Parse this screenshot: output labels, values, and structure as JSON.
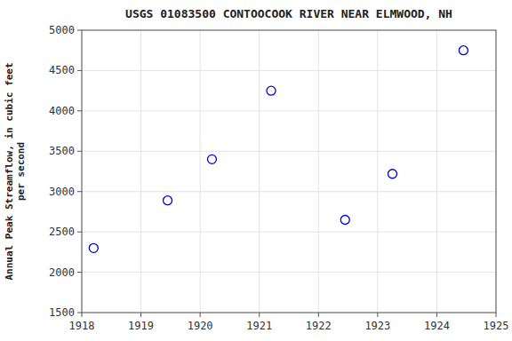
{
  "chart_data": {
    "type": "scatter",
    "title": "USGS 01083500 CONTOOCOOK RIVER NEAR ELMWOOD, NH",
    "y_label": "Annual Peak Streamflow, in cubic feet\nper second",
    "x": [
      1918.2,
      1919.45,
      1920.2,
      1921.2,
      1922.45,
      1923.25,
      1924.45
    ],
    "values": [
      2300,
      2890,
      3400,
      4250,
      2650,
      3220,
      4750
    ],
    "xlim": [
      1918,
      1925
    ],
    "ylim": [
      1500,
      5000
    ],
    "xticks": [
      1918,
      1919,
      1920,
      1921,
      1922,
      1923,
      1924,
      1925
    ],
    "yticks": [
      1500,
      2000,
      2500,
      3000,
      3500,
      4000,
      4500,
      5000
    ],
    "color": "#0000cc",
    "marker": "open-circle",
    "grid": true
  }
}
